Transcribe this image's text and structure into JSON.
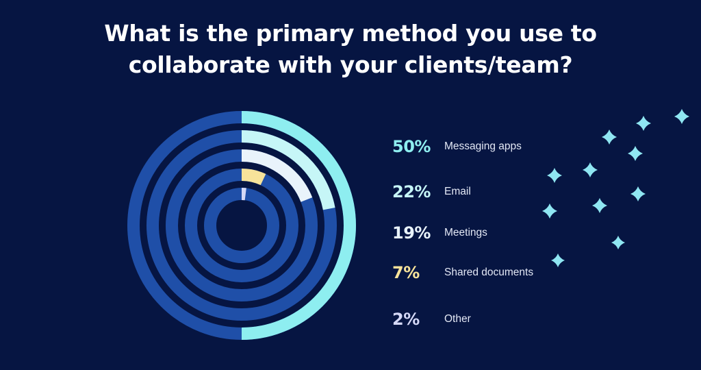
{
  "header": {
    "title": "What is the primary method you use to\ncollaborate with your clients/team?"
  },
  "chart_data": {
    "type": "radial-bar",
    "title": "What is the primary method you use to collaborate with your clients/team?",
    "unit": "%",
    "max": 100,
    "categories": [
      "Messaging apps",
      "Email",
      "Meetings",
      "Shared documents",
      "Other"
    ],
    "values": [
      50,
      22,
      19,
      7,
      2
    ],
    "labels": [
      "50%",
      "22%",
      "19%",
      "7%",
      "2%"
    ],
    "colors": [
      "#8eeef0",
      "#c6f6f7",
      "#e9f3fb",
      "#f7e39a",
      "#d5d9f7"
    ],
    "track_color": "#1f4fa8"
  },
  "legend": {
    "items": [
      {
        "pct": "50%",
        "label": "Messaging apps",
        "color": "#8eeef0"
      },
      {
        "pct": "22%",
        "label": "Email",
        "color": "#c6f6f7"
      },
      {
        "pct": "19%",
        "label": "Meetings",
        "color": "#e9f3fb"
      },
      {
        "pct": "7%",
        "label": "Shared documents",
        "color": "#f7e39a"
      },
      {
        "pct": "2%",
        "label": "Other",
        "color": "#d5d9f7"
      }
    ]
  },
  "decoration": {
    "sparkle_icon": "four-point-star-icon",
    "sparkle_color": "#8fe6f2"
  }
}
